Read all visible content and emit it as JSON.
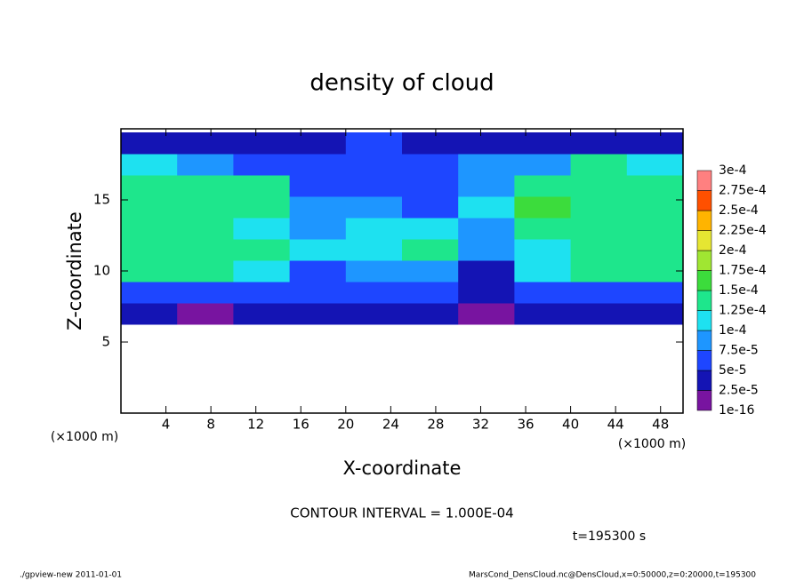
{
  "chart_data": {
    "type": "heatmap",
    "title": "density of cloud",
    "xlabel": "X-coordinate",
    "ylabel": "Z-coordinate",
    "xunit": "(×1000 m)",
    "yunit": "(×1000 m)",
    "annotation": "CONTOUR INTERVAL = 1.000E-04",
    "time": "t=195300 s",
    "footer_left": "./gpview-new  2011-01-01",
    "footer_right": "MarsCond_DensCloud.nc@DensCloud,x=0:50000,z=0:20000,t=195300",
    "xlim": [
      0,
      50
    ],
    "xticks": [
      4,
      8,
      12,
      16,
      20,
      24,
      28,
      32,
      36,
      40,
      44,
      48
    ],
    "ylim": [
      0,
      20
    ],
    "yticks": [
      5,
      10,
      15
    ],
    "x": [
      2.5,
      7.5,
      12.5,
      17.5,
      22.5,
      27.5,
      32.5,
      37.5,
      42.5,
      47.5
    ],
    "y": [
      7,
      8.5,
      10,
      11.5,
      13,
      14.5,
      16,
      17.5,
      19
    ],
    "z": [
      [
        3e-05,
        2e-05,
        3e-05,
        3e-05,
        3e-05,
        3e-05,
        1e-05,
        3e-05,
        3e-05,
        3e-05
      ],
      [
        6e-05,
        5e-05,
        6e-05,
        5e-05,
        5e-05,
        5e-05,
        3e-05,
        5e-05,
        6e-05,
        6e-05
      ],
      [
        0.00013,
        0.00013,
        0.00012,
        7e-05,
        8e-05,
        9e-05,
        4e-05,
        0.00011,
        0.00013,
        0.00013
      ],
      [
        0.00014,
        0.00014,
        0.00013,
        0.0001,
        0.00012,
        0.00013,
        9e-05,
        0.00012,
        0.00014,
        0.00014
      ],
      [
        0.00014,
        0.00014,
        0.00012,
        9e-05,
        0.00011,
        0.00012,
        8e-05,
        0.00013,
        0.00014,
        0.00014
      ],
      [
        0.00014,
        0.00014,
        0.00013,
        8e-05,
        9e-05,
        7e-05,
        0.0001,
        0.00016,
        0.00014,
        0.00014
      ],
      [
        0.00014,
        0.00014,
        0.00013,
        6e-05,
        7e-05,
        6e-05,
        9e-05,
        0.00014,
        0.00014,
        0.00014
      ],
      [
        0.00012,
        8e-05,
        7e-05,
        5e-05,
        6e-05,
        5e-05,
        8e-05,
        9e-05,
        0.00013,
        0.00012
      ],
      [
        3e-05,
        4e-05,
        4e-05,
        4e-05,
        5e-05,
        4e-05,
        4e-05,
        4e-05,
        4e-05,
        4e-05
      ]
    ],
    "levels": [
      {
        "value": 1e-16,
        "label": "1e-16"
      },
      {
        "value": 2.5e-05,
        "label": "2.5e-5"
      },
      {
        "value": 5e-05,
        "label": "5e-5"
      },
      {
        "value": 7.5e-05,
        "label": "7.5e-5"
      },
      {
        "value": 0.0001,
        "label": "1e-4"
      },
      {
        "value": 0.000125,
        "label": "1.25e-4"
      },
      {
        "value": 0.00015,
        "label": "1.5e-4"
      },
      {
        "value": 0.000175,
        "label": "1.75e-4"
      },
      {
        "value": 0.0002,
        "label": "2e-4"
      },
      {
        "value": 0.000225,
        "label": "2.25e-4"
      },
      {
        "value": 0.00025,
        "label": "2.5e-4"
      },
      {
        "value": 0.000275,
        "label": "2.75e-4"
      },
      {
        "value": 0.0003,
        "label": "3e-4"
      }
    ],
    "colors": [
      "#7814a0",
      "#1414b4",
      "#1e46ff",
      "#1e96ff",
      "#1ee1f0",
      "#1ee68c",
      "#3cdc3c",
      "#a0e632",
      "#e6e632",
      "#ffb400",
      "#ff5000",
      "#ff8080"
    ]
  }
}
